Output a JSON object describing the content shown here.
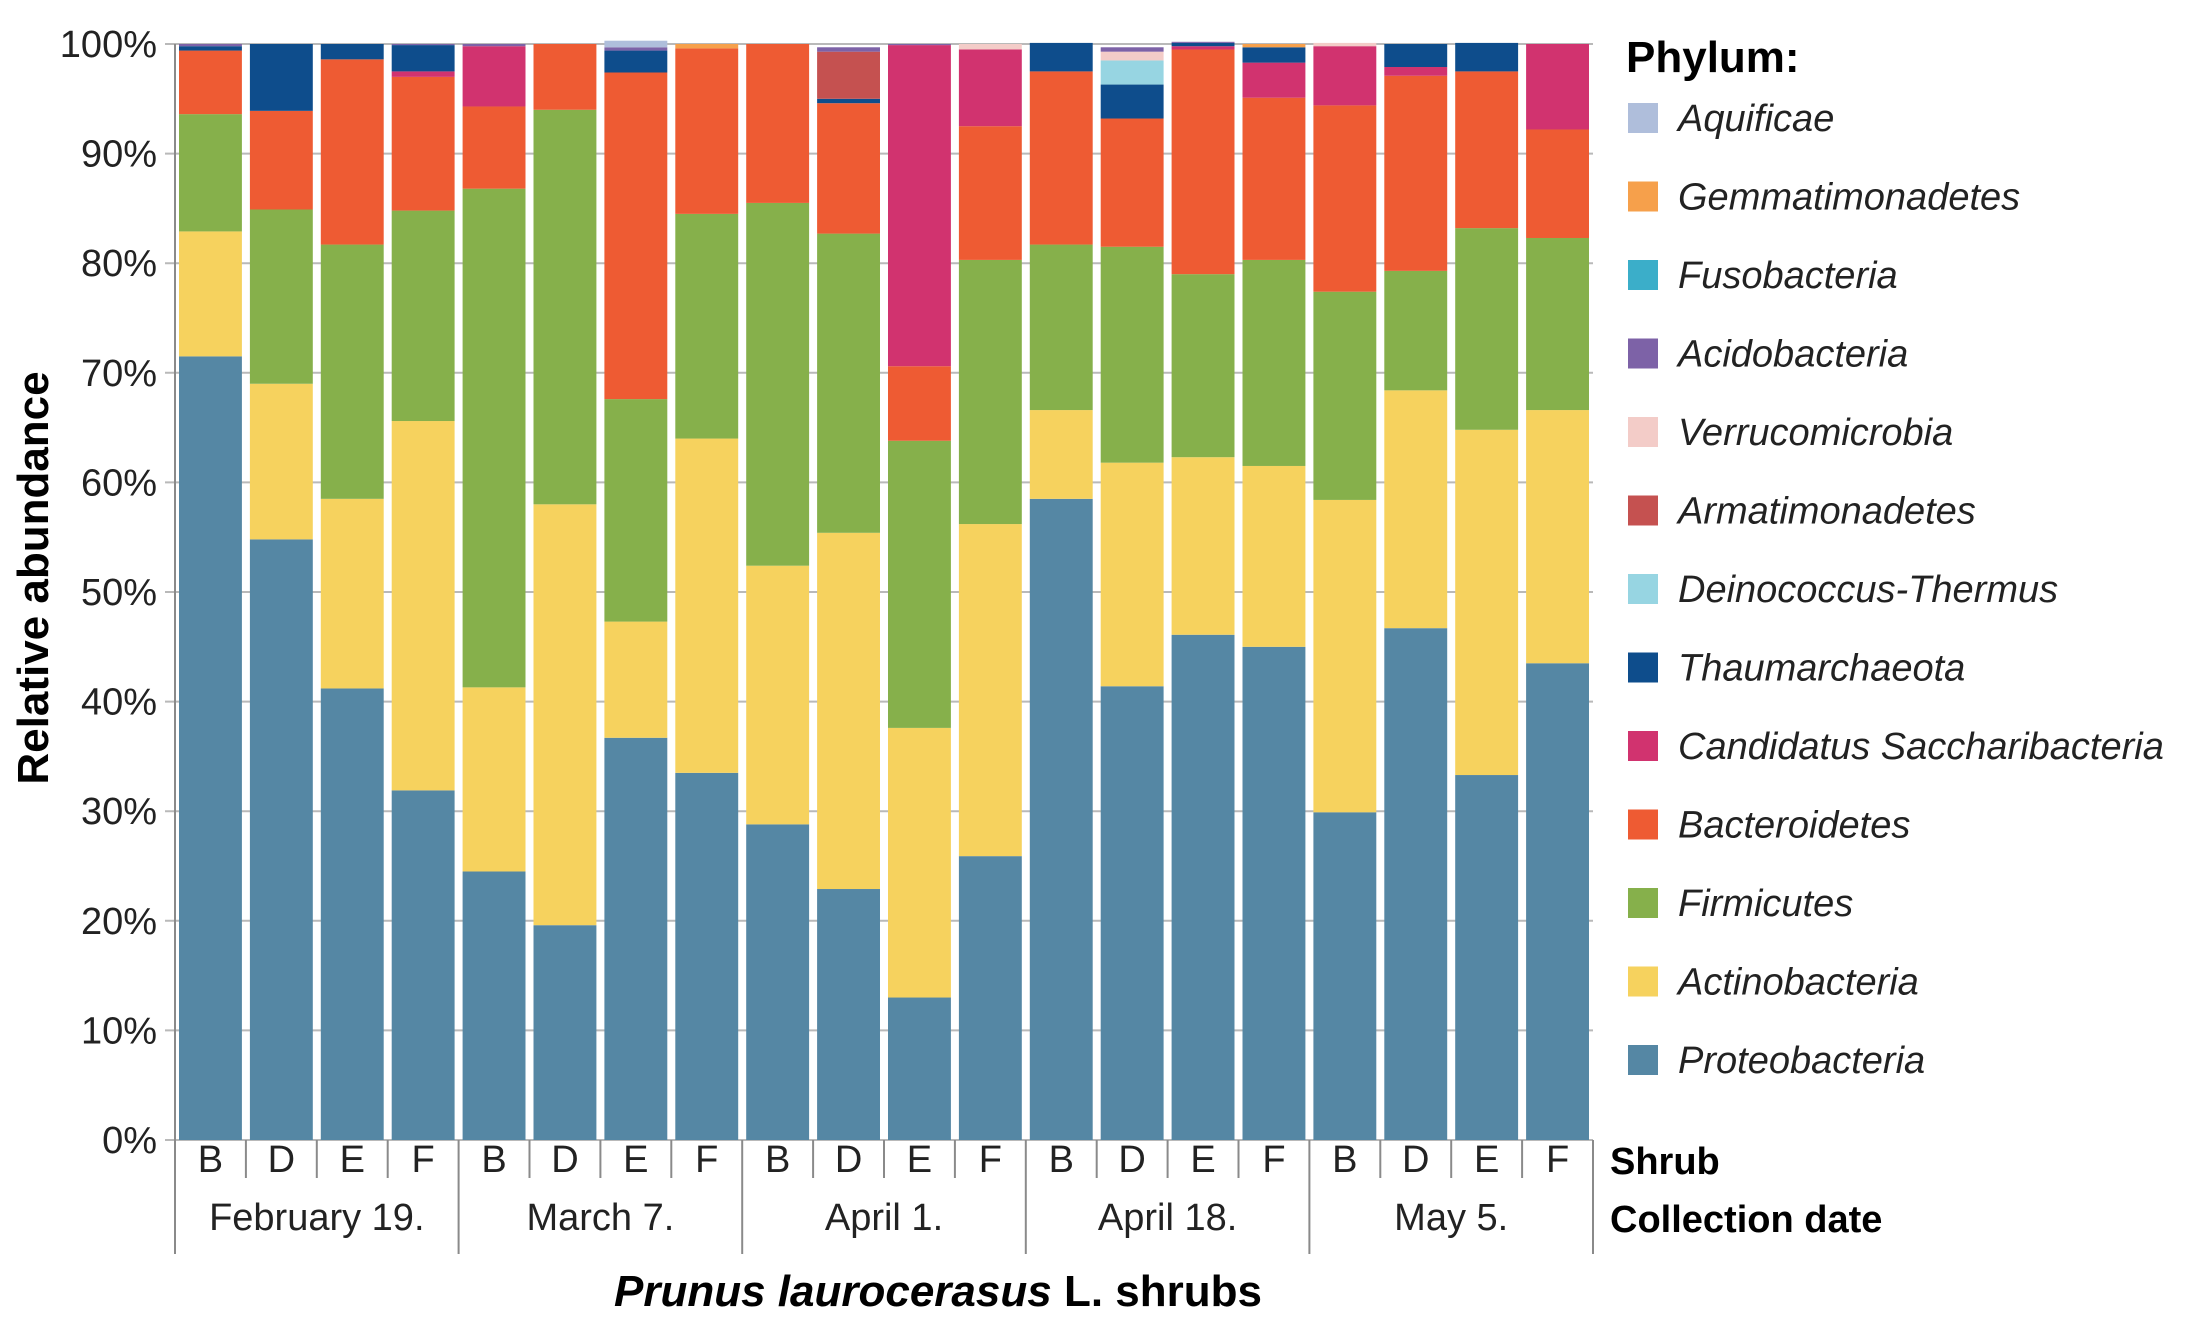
{
  "chart_data": {
    "type": "bar",
    "stacked": true,
    "ylabel": "Relative abundance",
    "ylim": [
      0,
      100
    ],
    "yticks": [
      "0%",
      "10%",
      "20%",
      "30%",
      "40%",
      "50%",
      "60%",
      "70%",
      "80%",
      "90%",
      "100%"
    ],
    "categories": [
      "B",
      "D",
      "E",
      "F",
      "B",
      "D",
      "E",
      "F",
      "B",
      "D",
      "E",
      "F",
      "B",
      "D",
      "E",
      "F",
      "B",
      "D",
      "E",
      "F"
    ],
    "groups": [
      "February 19.",
      "March 7.",
      "April 1.",
      "April 18.",
      "May 5."
    ],
    "group_size": 4,
    "row_labels": {
      "shrub": "Shrub",
      "date": "Collection date"
    },
    "xlabel": {
      "italic_part": "Prunus laurocerasus",
      "rest": " L. shrubs"
    },
    "legend_title": "Phylum:",
    "legend_placement": "right",
    "series": [
      {
        "name": "Proteobacteria",
        "color": "#5587A4",
        "values": [
          71.5,
          54.8,
          41.2,
          31.9,
          24.5,
          19.6,
          36.7,
          33.5,
          28.8,
          22.9,
          13.0,
          25.9,
          58.5,
          41.4,
          46.1,
          45.0,
          29.9,
          46.7,
          33.3,
          43.5
        ]
      },
      {
        "name": "Actinobacteria",
        "color": "#F6D25E",
        "values": [
          11.4,
          14.2,
          17.3,
          33.7,
          16.8,
          38.4,
          10.6,
          30.5,
          23.6,
          32.5,
          24.6,
          30.3,
          8.1,
          20.4,
          16.2,
          16.5,
          28.5,
          21.7,
          31.5,
          23.1
        ]
      },
      {
        "name": "Firmicutes",
        "color": "#86B04B",
        "values": [
          10.7,
          15.9,
          23.2,
          19.2,
          45.5,
          36.0,
          20.3,
          20.5,
          33.1,
          27.3,
          26.2,
          24.1,
          15.1,
          19.7,
          16.7,
          18.8,
          19.0,
          10.9,
          18.4,
          15.7
        ]
      },
      {
        "name": "Bacteroidetes",
        "color": "#EE5B33",
        "values": [
          5.8,
          9.0,
          16.9,
          12.2,
          7.5,
          6.0,
          29.8,
          15.1,
          14.5,
          11.9,
          6.8,
          12.2,
          15.8,
          11.7,
          20.5,
          14.8,
          17.0,
          17.8,
          14.3,
          9.9
        ]
      },
      {
        "name": "Candidatus Saccharibacteria",
        "color": "#D1336F",
        "values": [
          0,
          0,
          0,
          0.5,
          5.5,
          0,
          0,
          0,
          0,
          0,
          29.3,
          7.0,
          0,
          0,
          0.3,
          3.2,
          5.4,
          0.8,
          0,
          7.8
        ]
      },
      {
        "name": "Thaumarchaeota",
        "color": "#0E4D8C",
        "values": [
          0.4,
          6.1,
          1.4,
          2.4,
          0,
          0,
          2.0,
          0,
          0,
          0.4,
          0,
          0,
          2.6,
          3.1,
          0.3,
          1.4,
          0,
          2.1,
          2.6,
          0
        ]
      },
      {
        "name": "Deinococcus-Thermus",
        "color": "#97D5E2",
        "values": [
          0,
          0,
          0,
          0,
          0,
          0,
          0,
          0,
          0,
          0,
          0,
          0,
          0,
          2.2,
          0,
          0,
          0,
          0,
          0,
          0
        ]
      },
      {
        "name": "Armatimonadetes",
        "color": "#C55150",
        "values": [
          0,
          0,
          0,
          0,
          0,
          0,
          0,
          0,
          0,
          4.3,
          0,
          0,
          0,
          0,
          0,
          0,
          0,
          0,
          0,
          0
        ]
      },
      {
        "name": "Verrucomicrobia",
        "color": "#F3CCC8",
        "values": [
          0,
          0,
          0,
          0,
          0,
          0,
          0,
          0,
          0,
          0,
          0,
          0.5,
          0,
          0.8,
          0,
          0,
          0.3,
          0,
          0,
          0
        ]
      },
      {
        "name": "Acidobacteria",
        "color": "#7D62A7",
        "values": [
          0.2,
          0,
          0,
          0.1,
          0.2,
          0,
          0.3,
          0,
          0,
          0.4,
          0.1,
          0,
          0,
          0.4,
          0.1,
          0,
          0,
          0,
          0,
          0
        ]
      },
      {
        "name": "Fusobacteria",
        "color": "#3BAEC9",
        "values": [
          0,
          0,
          0,
          0,
          0,
          0,
          0,
          0,
          0,
          0,
          0,
          0,
          0,
          0,
          0,
          0,
          0,
          0,
          0,
          0
        ]
      },
      {
        "name": "Gemmatimonadetes",
        "color": "#F6A04B",
        "values": [
          0,
          0,
          0,
          0,
          0,
          0,
          0,
          0.4,
          0,
          0,
          0,
          0,
          0,
          0,
          0,
          0.3,
          0,
          0,
          0,
          0
        ]
      },
      {
        "name": "Aquificae",
        "color": "#AFBEDB",
        "values": [
          0,
          0,
          0,
          0,
          0,
          0,
          0.6,
          0,
          0,
          0,
          0,
          0,
          0,
          0,
          0,
          0,
          0,
          0,
          0,
          0
        ]
      }
    ]
  }
}
